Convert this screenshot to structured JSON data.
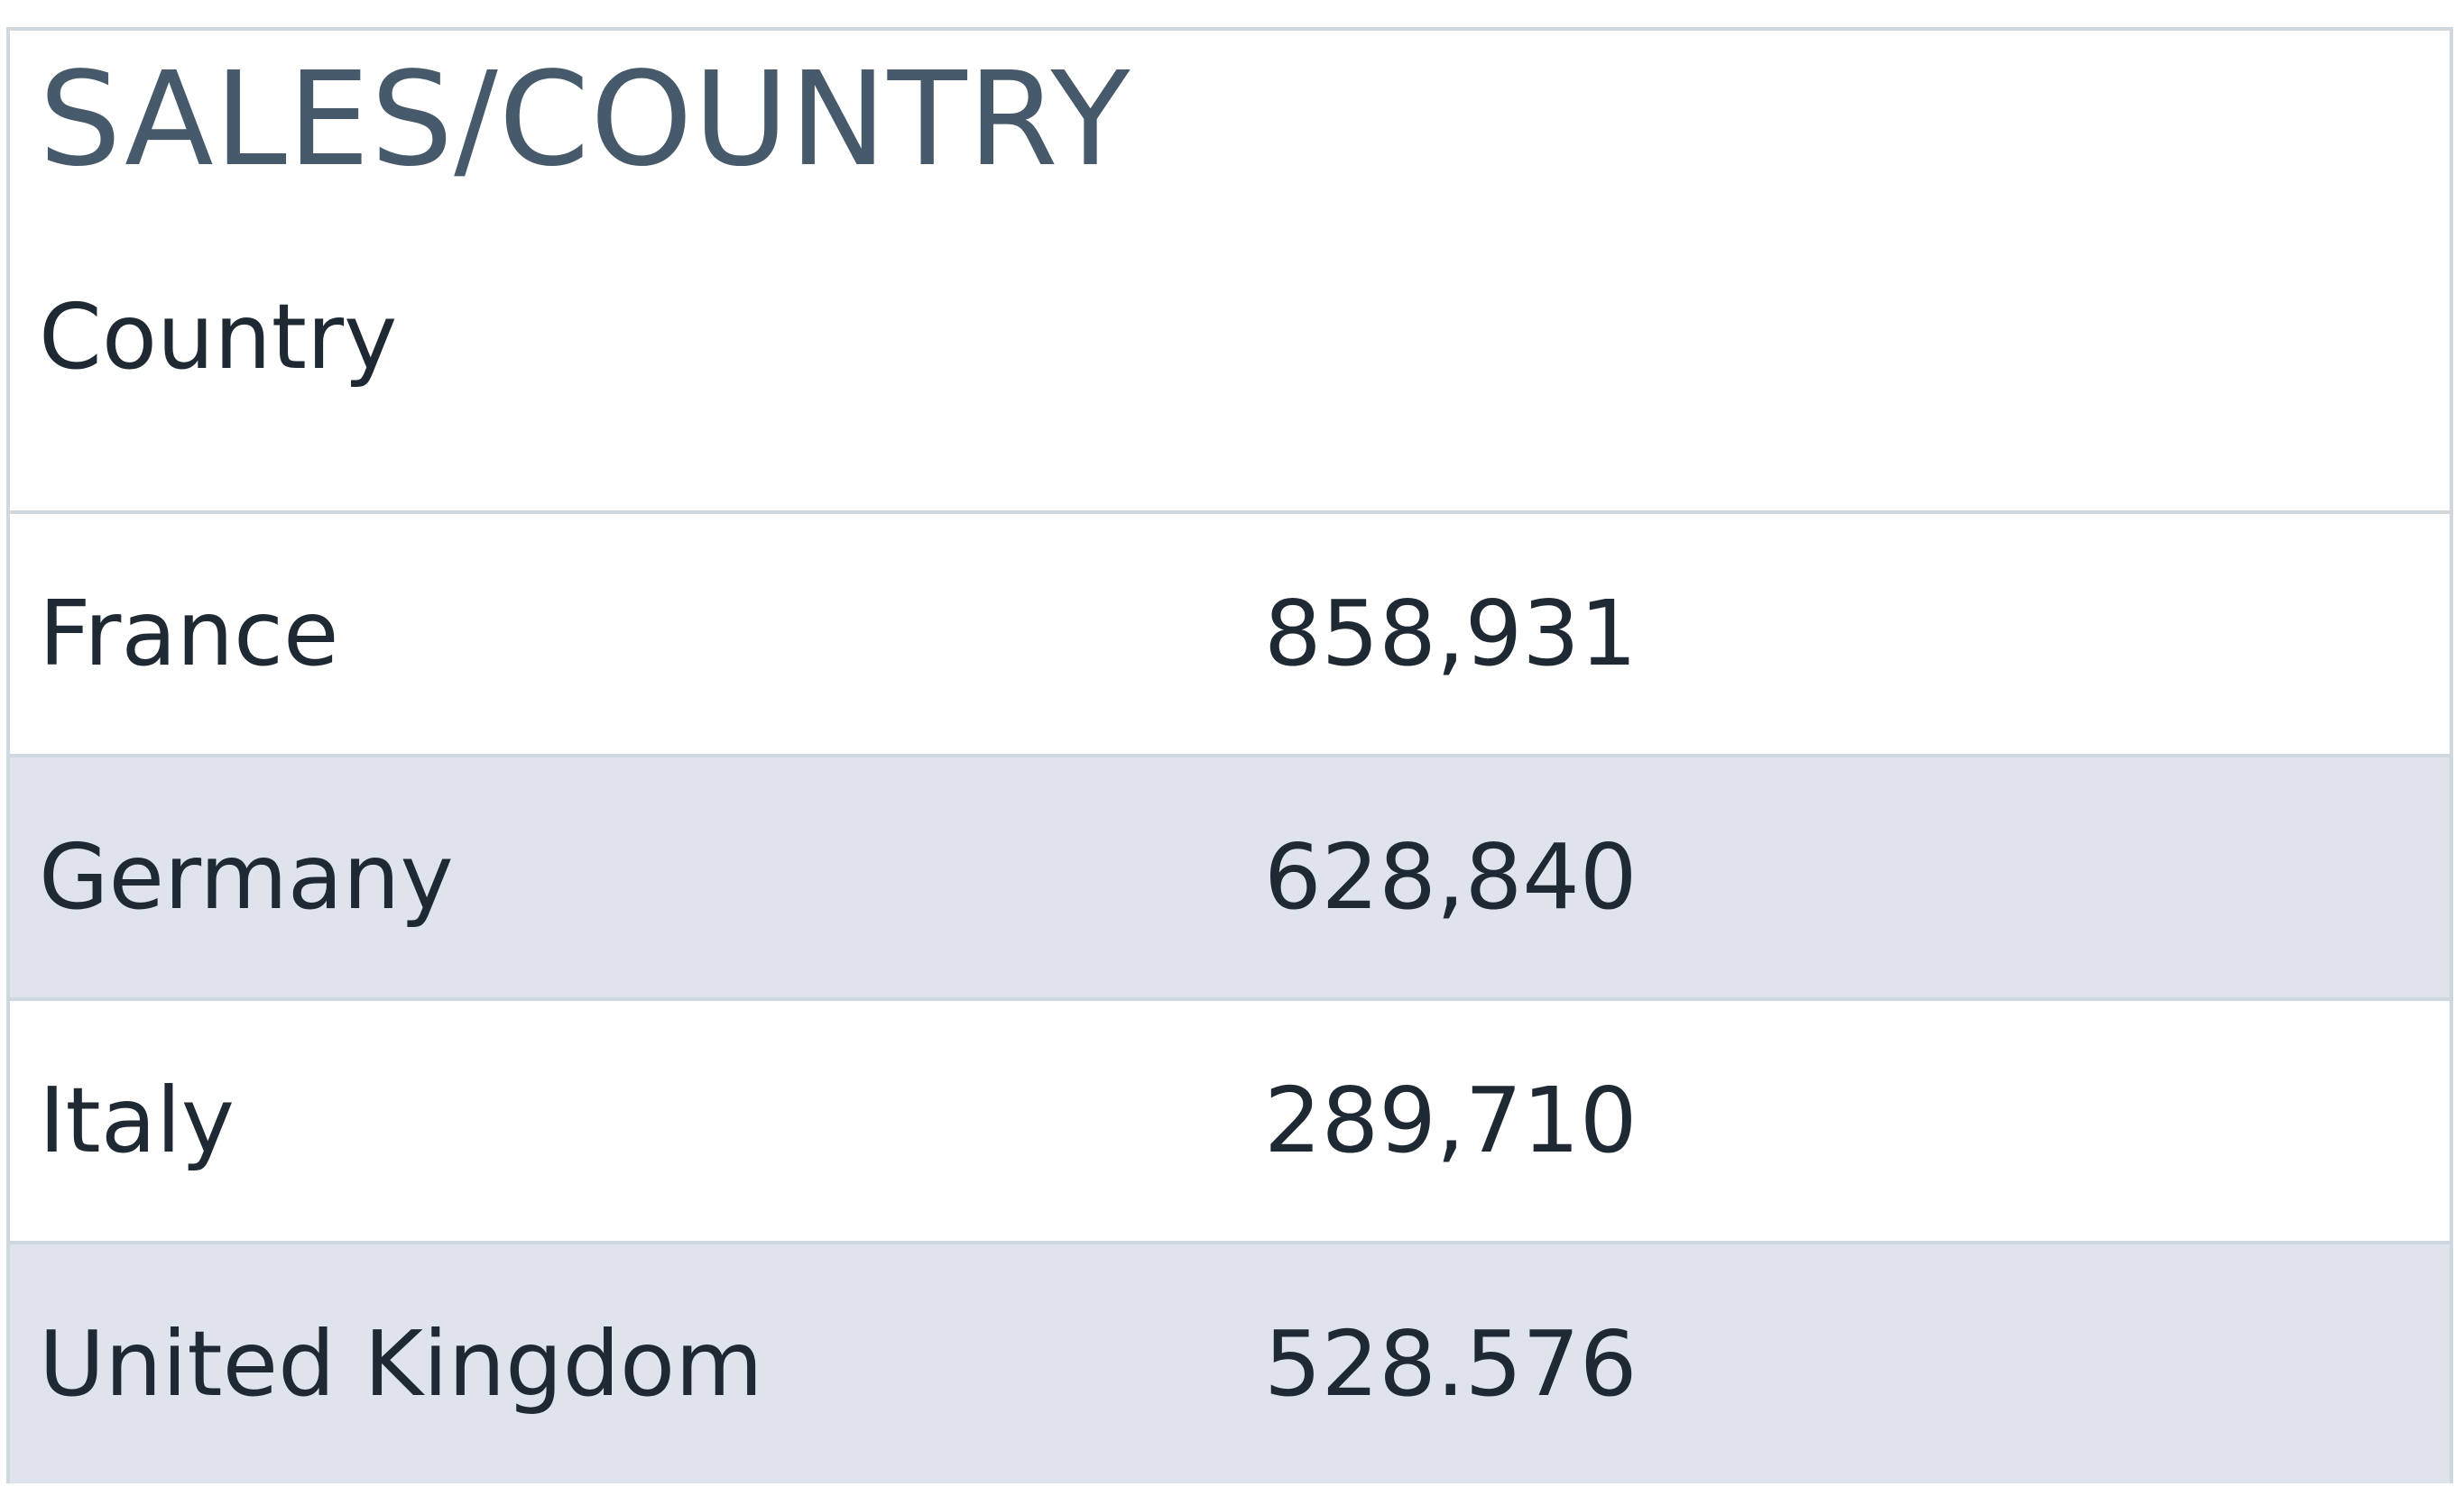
{
  "table": {
    "title": "SALES/COUNTRY",
    "column_header": "Country",
    "rows": [
      {
        "country": "France",
        "value": "858,931"
      },
      {
        "country": "Germany",
        "value": "628,840"
      },
      {
        "country": "Italy",
        "value": "289,710"
      },
      {
        "country": "United Kingdom",
        "value": "528.576"
      }
    ],
    "colors": {
      "border": "#cfd7df",
      "shaded_row": "#dfe4ec",
      "title_text": "#475a6b",
      "body_text": "#1f2933"
    }
  }
}
